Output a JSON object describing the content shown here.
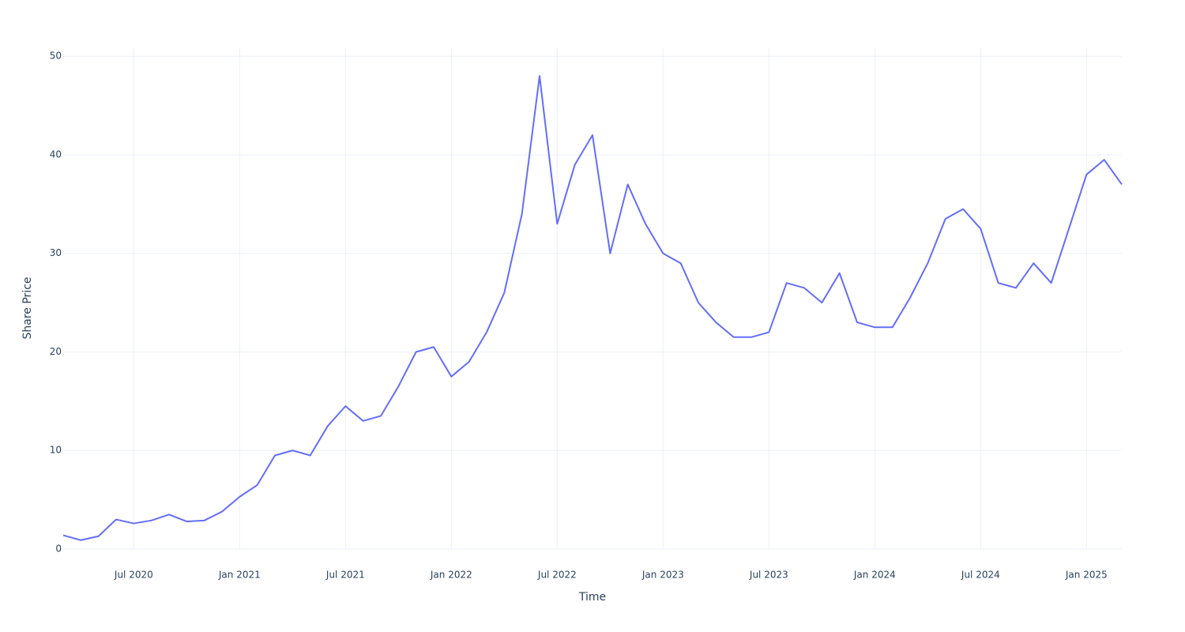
{
  "chart_data": {
    "type": "line",
    "x_label": "Time",
    "y_label": "Share Price",
    "x": [
      "2020-03",
      "2020-04",
      "2020-05",
      "2020-06",
      "2020-07",
      "2020-08",
      "2020-09",
      "2020-10",
      "2020-11",
      "2020-12",
      "2021-01",
      "2021-02",
      "2021-03",
      "2021-04",
      "2021-05",
      "2021-06",
      "2021-07",
      "2021-08",
      "2021-09",
      "2021-10",
      "2021-11",
      "2021-12",
      "2022-01",
      "2022-02",
      "2022-03",
      "2022-04",
      "2022-05",
      "2022-06",
      "2022-07",
      "2022-08",
      "2022-09",
      "2022-10",
      "2022-11",
      "2022-12",
      "2023-01",
      "2023-02",
      "2023-03",
      "2023-04",
      "2023-05",
      "2023-06",
      "2023-07",
      "2023-08",
      "2023-09",
      "2023-10",
      "2023-11",
      "2023-12",
      "2024-01",
      "2024-02",
      "2024-03",
      "2024-04",
      "2024-05",
      "2024-06",
      "2024-07",
      "2024-08",
      "2024-09",
      "2024-10",
      "2024-11",
      "2024-12",
      "2025-01",
      "2025-02",
      "2025-03"
    ],
    "series": [
      {
        "name": "Share Price",
        "color": "#636efa",
        "values": [
          1.4,
          0.9,
          1.3,
          3.0,
          2.6,
          2.9,
          3.5,
          2.8,
          2.9,
          3.8,
          5.3,
          6.5,
          9.5,
          10.0,
          9.5,
          12.5,
          14.5,
          13.0,
          13.5,
          16.5,
          20.0,
          20.5,
          17.5,
          19.0,
          22.0,
          26.0,
          34.0,
          48.0,
          33.0,
          39.0,
          42.0,
          30.0,
          37.0,
          33.0,
          30.0,
          29.0,
          25.0,
          23.0,
          21.5,
          21.5,
          22.0,
          27.0,
          26.5,
          25.0,
          28.0,
          23.0,
          22.5,
          22.5,
          25.5,
          29.0,
          33.5,
          34.5,
          32.5,
          27.0,
          26.5,
          29.0,
          27.0,
          32.5,
          38.0,
          39.5,
          37.0
        ]
      }
    ],
    "xlim": [
      "2020-03",
      "2025-03"
    ],
    "xticks": [
      {
        "value": "2020-07",
        "label": "Jul 2020"
      },
      {
        "value": "2021-01",
        "label": "Jan 2021"
      },
      {
        "value": "2021-07",
        "label": "Jul 2021"
      },
      {
        "value": "2022-01",
        "label": "Jan 2022"
      },
      {
        "value": "2022-07",
        "label": "Jul 2022"
      },
      {
        "value": "2023-01",
        "label": "Jan 2023"
      },
      {
        "value": "2023-07",
        "label": "Jul 2023"
      },
      {
        "value": "2024-01",
        "label": "Jan 2024"
      },
      {
        "value": "2024-07",
        "label": "Jul 2024"
      },
      {
        "value": "2025-01",
        "label": "Jan 2025"
      }
    ],
    "ylim": [
      0,
      50.9
    ],
    "yticks": [
      0,
      10,
      20,
      30,
      40,
      50
    ],
    "grid": true
  }
}
